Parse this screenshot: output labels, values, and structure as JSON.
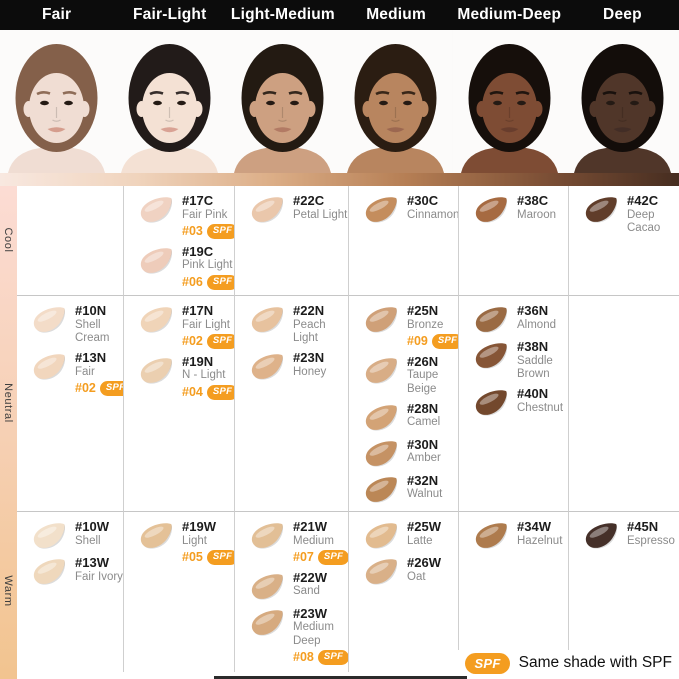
{
  "header": {
    "items": [
      "Fair",
      "Fair-Light",
      "Light-Medium",
      "Medium",
      "Medium-Deep",
      "Deep"
    ]
  },
  "faces": [
    {
      "category": "Fair",
      "skin": "#f0ddd3",
      "hair": "#84604a",
      "lip": "#d59d8d"
    },
    {
      "category": "Fair-Light",
      "skin": "#f4e1d4",
      "hair": "#221b19",
      "lip": "#d9a294"
    },
    {
      "category": "Light-Medium",
      "skin": "#cda081",
      "hair": "#231a12",
      "lip": "#b27a64"
    },
    {
      "category": "Medium",
      "skin": "#b8855f",
      "hair": "#2b1d12",
      "lip": "#9c6750"
    },
    {
      "category": "Medium-Deep",
      "skin": "#7e4c34",
      "hair": "#160f0b",
      "lip": "#683d2d"
    },
    {
      "category": "Deep",
      "skin": "#503629",
      "hair": "#130d0a",
      "lip": "#422d26"
    }
  ],
  "tone_gradient": [
    "#f8e8e0",
    "#f0d4bd",
    "#dcae87",
    "#b57e54",
    "#7d5036",
    "#462d20"
  ],
  "sidebar": {
    "gradient": [
      "#fcdcd4",
      "#f6d0b4",
      "#f2c48f"
    ],
    "rows": [
      {
        "label": "Cool"
      },
      {
        "label": "Neutral"
      },
      {
        "label": "Warm"
      }
    ]
  },
  "grid": {
    "rows": [
      {
        "tone": "Cool",
        "cells": [
          [],
          [
            {
              "code": "#17C",
              "name": "Fair Pink",
              "spf": "#03",
              "swatch": "#f0d2c2"
            },
            {
              "code": "#19C",
              "name": "Pink Light",
              "spf": "#06",
              "swatch": "#eeccba"
            }
          ],
          [
            {
              "code": "#22C",
              "name": "Petal Light",
              "swatch": "#eac7ab"
            }
          ],
          [
            {
              "code": "#30C",
              "name": "Cinnamon",
              "swatch": "#c48d5d"
            }
          ],
          [
            {
              "code": "#38C",
              "name": "Maroon",
              "swatch": "#a66a41"
            }
          ],
          [
            {
              "code": "#42C",
              "name": "Deep\nCacao",
              "swatch": "#603d2a"
            }
          ]
        ]
      },
      {
        "tone": "Neutral",
        "cells": [
          [
            {
              "code": "#10N",
              "name": "Shell\nCream",
              "swatch": "#f3dcc8"
            },
            {
              "code": "#13N",
              "name": "Fair",
              "spf": "#02",
              "swatch": "#f1d6bd"
            }
          ],
          [
            {
              "code": "#17N",
              "name": "Fair Light",
              "spf": "#02",
              "swatch": "#f0d4b8"
            },
            {
              "code": "#19N",
              "name": "N - Light",
              "spf": "#04",
              "swatch": "#ebcfb0"
            }
          ],
          [
            {
              "code": "#22N",
              "name": "Peach\nLight",
              "swatch": "#e7c29e"
            },
            {
              "code": "#23N",
              "name": "Honey",
              "swatch": "#deb28a"
            }
          ],
          [
            {
              "code": "#25N",
              "name": "Bronze",
              "spf": "#09",
              "swatch": "#cfa078"
            },
            {
              "code": "#26N",
              "name": "Taupe\nBeige",
              "swatch": "#d8ad86"
            },
            {
              "code": "#28N",
              "name": "Camel",
              "swatch": "#d3a376"
            },
            {
              "code": "#30N",
              "name": "Amber",
              "swatch": "#c59264"
            },
            {
              "code": "#32N",
              "name": "Walnut",
              "swatch": "#bb8756"
            }
          ],
          [
            {
              "code": "#36N",
              "name": "Almond",
              "swatch": "#9a6a43"
            },
            {
              "code": "#38N",
              "name": "Saddle\nBrown",
              "swatch": "#865536"
            },
            {
              "code": "#40N",
              "name": "Chestnut",
              "swatch": "#73482d"
            }
          ],
          []
        ]
      },
      {
        "tone": "Warm",
        "cells": [
          [
            {
              "code": "#10W",
              "name": "Shell",
              "swatch": "#f2e0ca"
            },
            {
              "code": "#13W",
              "name": "Fair Ivory",
              "swatch": "#efd8bc"
            }
          ],
          [
            {
              "code": "#19W",
              "name": "Light",
              "spf": "#05",
              "swatch": "#e4c197"
            }
          ],
          [
            {
              "code": "#21W",
              "name": "Medium",
              "spf": "#07",
              "swatch": "#e2bf96"
            },
            {
              "code": "#22W",
              "name": "Sand",
              "swatch": "#d9b087"
            },
            {
              "code": "#23W",
              "name": "Medium\nDeep",
              "spf": "#08",
              "swatch": "#d6aa7f"
            }
          ],
          [
            {
              "code": "#25W",
              "name": "Latte",
              "swatch": "#e2bb8f"
            },
            {
              "code": "#26W",
              "name": "Oat",
              "swatch": "#d9b088"
            }
          ],
          [
            {
              "code": "#34W",
              "name": "Hazelnut",
              "swatch": "#ae7b4d"
            }
          ],
          [
            {
              "code": "#45N",
              "name": "Espresso",
              "swatch": "#453029"
            }
          ]
        ]
      }
    ]
  },
  "legend": {
    "badge": "SPF",
    "text": "Same shade with SPF"
  },
  "style": {
    "accent": "#f49d20",
    "header_bg": "#0c0c0c",
    "code_color": "#1c1c1c",
    "name_color": "#8b8b8b",
    "grid_line": "#c9c9c9"
  }
}
